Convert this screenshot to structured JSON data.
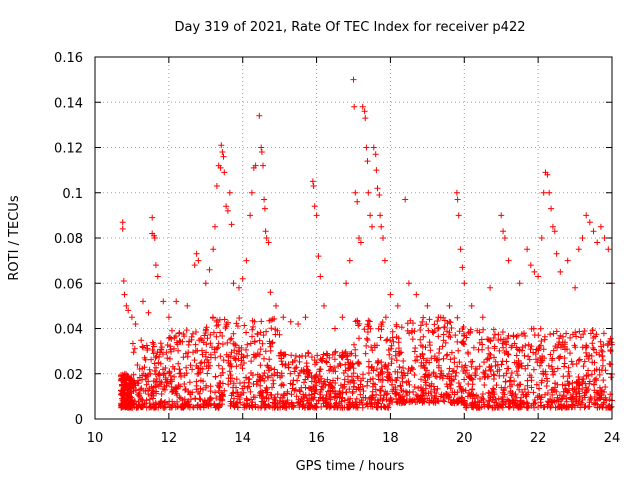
{
  "chart_data": {
    "type": "scatter",
    "title": "Day 319 of 2021, Rate Of TEC Index for receiver p422",
    "xlabel": "GPS time / hours",
    "ylabel": "ROTI / TECUs",
    "xlim": [
      10,
      24
    ],
    "ylim": [
      0,
      0.16
    ],
    "x_ticks": [
      10,
      12,
      14,
      16,
      18,
      20,
      22,
      24
    ],
    "x_tick_labels": [
      "10",
      "12",
      "14",
      "16",
      "18",
      "20",
      "22",
      "24"
    ],
    "y_ticks": [
      0,
      0.02,
      0.04,
      0.06,
      0.08,
      0.1,
      0.12,
      0.14,
      0.16
    ],
    "y_tick_labels": [
      "0",
      "0.02",
      "0.04",
      "0.06",
      "0.08",
      "0.1",
      "0.12",
      "0.14",
      "0.16"
    ],
    "grid": true,
    "marker": "plus",
    "marker_color": "#ff0000",
    "series": [
      {
        "name": "ROTI",
        "points": [
          [
            10.75,
            0.087
          ],
          [
            10.75,
            0.084
          ],
          [
            10.78,
            0.061
          ],
          [
            10.8,
            0.055
          ],
          [
            10.85,
            0.05
          ],
          [
            10.9,
            0.048
          ],
          [
            11.0,
            0.045
          ],
          [
            11.1,
            0.042
          ],
          [
            11.3,
            0.052
          ],
          [
            11.45,
            0.047
          ],
          [
            11.55,
            0.089
          ],
          [
            11.55,
            0.082
          ],
          [
            11.6,
            0.081
          ],
          [
            11.62,
            0.08
          ],
          [
            11.65,
            0.068
          ],
          [
            11.7,
            0.063
          ],
          [
            11.85,
            0.052
          ],
          [
            12.0,
            0.045
          ],
          [
            12.2,
            0.052
          ],
          [
            12.5,
            0.05
          ],
          [
            12.7,
            0.068
          ],
          [
            12.75,
            0.073
          ],
          [
            12.8,
            0.07
          ],
          [
            13.0,
            0.06
          ],
          [
            13.1,
            0.066
          ],
          [
            13.2,
            0.075
          ],
          [
            13.25,
            0.085
          ],
          [
            13.3,
            0.103
          ],
          [
            13.35,
            0.112
          ],
          [
            13.4,
            0.111
          ],
          [
            13.42,
            0.121
          ],
          [
            13.45,
            0.118
          ],
          [
            13.48,
            0.116
          ],
          [
            13.5,
            0.109
          ],
          [
            13.55,
            0.094
          ],
          [
            13.6,
            0.092
          ],
          [
            13.65,
            0.1
          ],
          [
            13.7,
            0.086
          ],
          [
            13.75,
            0.06
          ],
          [
            13.9,
            0.058
          ],
          [
            14.0,
            0.062
          ],
          [
            14.1,
            0.07
          ],
          [
            14.2,
            0.09
          ],
          [
            14.25,
            0.1
          ],
          [
            14.3,
            0.111
          ],
          [
            14.35,
            0.112
          ],
          [
            14.45,
            0.134
          ],
          [
            14.5,
            0.12
          ],
          [
            14.52,
            0.118
          ],
          [
            14.55,
            0.112
          ],
          [
            14.58,
            0.097
          ],
          [
            14.6,
            0.093
          ],
          [
            14.62,
            0.083
          ],
          [
            14.65,
            0.08
          ],
          [
            14.7,
            0.078
          ],
          [
            14.75,
            0.056
          ],
          [
            14.9,
            0.05
          ],
          [
            15.1,
            0.045
          ],
          [
            15.3,
            0.043
          ],
          [
            15.5,
            0.042
          ],
          [
            15.7,
            0.045
          ],
          [
            15.9,
            0.105
          ],
          [
            15.92,
            0.103
          ],
          [
            15.95,
            0.094
          ],
          [
            16.0,
            0.09
          ],
          [
            16.05,
            0.072
          ],
          [
            16.1,
            0.063
          ],
          [
            16.2,
            0.05
          ],
          [
            16.5,
            0.04
          ],
          [
            16.7,
            0.045
          ],
          [
            16.8,
            0.06
          ],
          [
            16.9,
            0.07
          ],
          [
            17.0,
            0.15
          ],
          [
            17.02,
            0.138
          ],
          [
            17.05,
            0.1
          ],
          [
            17.1,
            0.096
          ],
          [
            17.15,
            0.08
          ],
          [
            17.2,
            0.078
          ],
          [
            17.25,
            0.138
          ],
          [
            17.3,
            0.136
          ],
          [
            17.32,
            0.133
          ],
          [
            17.35,
            0.12
          ],
          [
            17.38,
            0.114
          ],
          [
            17.4,
            0.1
          ],
          [
            17.45,
            0.09
          ],
          [
            17.5,
            0.085
          ],
          [
            17.55,
            0.12
          ],
          [
            17.6,
            0.117
          ],
          [
            17.62,
            0.11
          ],
          [
            17.65,
            0.102
          ],
          [
            17.7,
            0.099
          ],
          [
            17.72,
            0.09
          ],
          [
            17.75,
            0.085
          ],
          [
            17.8,
            0.08
          ],
          [
            17.85,
            0.07
          ],
          [
            18.0,
            0.055
          ],
          [
            18.2,
            0.05
          ],
          [
            18.4,
            0.097
          ],
          [
            18.5,
            0.06
          ],
          [
            18.7,
            0.055
          ],
          [
            19.0,
            0.05
          ],
          [
            19.3,
            0.045
          ],
          [
            19.6,
            0.05
          ],
          [
            19.8,
            0.1
          ],
          [
            19.82,
            0.097
          ],
          [
            19.85,
            0.09
          ],
          [
            19.9,
            0.075
          ],
          [
            19.95,
            0.067
          ],
          [
            20.0,
            0.06
          ],
          [
            20.2,
            0.05
          ],
          [
            20.5,
            0.045
          ],
          [
            20.7,
            0.058
          ],
          [
            21.0,
            0.09
          ],
          [
            21.05,
            0.083
          ],
          [
            21.1,
            0.08
          ],
          [
            21.2,
            0.07
          ],
          [
            21.5,
            0.06
          ],
          [
            21.7,
            0.075
          ],
          [
            21.8,
            0.068
          ],
          [
            21.9,
            0.065
          ],
          [
            22.0,
            0.063
          ],
          [
            22.1,
            0.08
          ],
          [
            22.15,
            0.1
          ],
          [
            22.2,
            0.109
          ],
          [
            22.25,
            0.108
          ],
          [
            22.3,
            0.1
          ],
          [
            22.35,
            0.093
          ],
          [
            22.4,
            0.085
          ],
          [
            22.45,
            0.083
          ],
          [
            22.5,
            0.073
          ],
          [
            22.6,
            0.065
          ],
          [
            22.8,
            0.07
          ],
          [
            23.0,
            0.058
          ],
          [
            23.1,
            0.075
          ],
          [
            23.2,
            0.08
          ],
          [
            23.3,
            0.09
          ],
          [
            23.4,
            0.087
          ],
          [
            23.5,
            0.083
          ],
          [
            23.6,
            0.078
          ],
          [
            23.7,
            0.085
          ],
          [
            23.8,
            0.08
          ],
          [
            23.9,
            0.075
          ],
          [
            24.0,
            0.06
          ]
        ],
        "envelope": [
          {
            "x": [
              10.7,
              11.0
            ],
            "low": 0.005,
            "high": 0.02
          },
          {
            "x": [
              11.0,
              12.0
            ],
            "low": 0.005,
            "high": 0.035
          },
          {
            "x": [
              12.0,
              13.0
            ],
            "low": 0.005,
            "high": 0.04
          },
          {
            "x": [
              13.0,
              14.0
            ],
            "low": 0.005,
            "high": 0.045
          },
          {
            "x": [
              14.0,
              15.0
            ],
            "low": 0.005,
            "high": 0.045
          },
          {
            "x": [
              15.0,
              16.0
            ],
            "low": 0.005,
            "high": 0.03
          },
          {
            "x": [
              16.0,
              17.0
            ],
            "low": 0.005,
            "high": 0.03
          },
          {
            "x": [
              17.0,
              18.0
            ],
            "low": 0.005,
            "high": 0.045
          },
          {
            "x": [
              18.0,
              19.0
            ],
            "low": 0.007,
            "high": 0.045
          },
          {
            "x": [
              19.0,
              20.0
            ],
            "low": 0.007,
            "high": 0.045
          },
          {
            "x": [
              20.0,
              21.0
            ],
            "low": 0.005,
            "high": 0.04
          },
          {
            "x": [
              21.0,
              22.0
            ],
            "low": 0.005,
            "high": 0.04
          },
          {
            "x": [
              22.0,
              23.0
            ],
            "low": 0.005,
            "high": 0.04
          },
          {
            "x": [
              23.0,
              24.0
            ],
            "low": 0.005,
            "high": 0.04
          }
        ]
      }
    ]
  }
}
